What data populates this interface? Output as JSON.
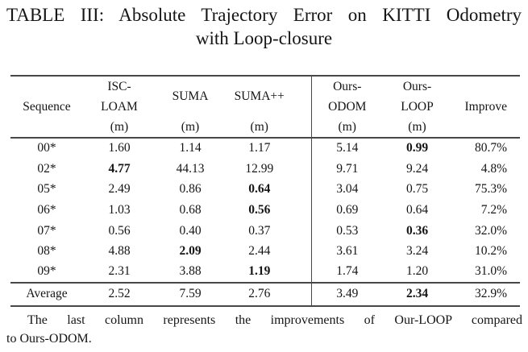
{
  "title": {
    "line1": "TABLE III: Absolute Trajectory Error on KITTI Odometry",
    "line2": "with Loop-closure"
  },
  "table": {
    "columns": [
      {
        "key": "sequence",
        "layout": "middle",
        "label": "Sequence",
        "unit": ""
      },
      {
        "key": "isc-loam",
        "layout": "two-line",
        "line1": "ISC-",
        "line2": "LOAM",
        "unit": "(m)"
      },
      {
        "key": "suma",
        "layout": "spanning",
        "label": "SUMA",
        "unit": "(m)"
      },
      {
        "key": "suma-pp",
        "layout": "spanning",
        "label": "SUMA++",
        "unit": "(m)"
      },
      {
        "key": "ours-odom",
        "layout": "two-line",
        "line1": "Ours-",
        "line2": "ODOM",
        "unit": "(m)"
      },
      {
        "key": "ours-loop",
        "layout": "two-line",
        "line1": "Ours-",
        "line2": "LOOP",
        "unit": "(m)"
      },
      {
        "key": "improve",
        "layout": "middle",
        "label": "Improve",
        "unit": ""
      }
    ],
    "rows": [
      {
        "sequence": "00*",
        "values": [
          "1.60",
          "1.14",
          "1.17",
          "5.14",
          "0.99",
          "80.7%"
        ],
        "bold_index": 4
      },
      {
        "sequence": "02*",
        "values": [
          "4.77",
          "44.13",
          "12.99",
          "9.71",
          "9.24",
          "4.8%"
        ],
        "bold_index": 0
      },
      {
        "sequence": "05*",
        "values": [
          "2.49",
          "0.86",
          "0.64",
          "3.04",
          "0.75",
          "75.3%"
        ],
        "bold_index": 2
      },
      {
        "sequence": "06*",
        "values": [
          "1.03",
          "0.68",
          "0.56",
          "0.69",
          "0.64",
          "7.2%"
        ],
        "bold_index": 2
      },
      {
        "sequence": "07*",
        "values": [
          "0.56",
          "0.40",
          "0.37",
          "0.53",
          "0.36",
          "32.0%"
        ],
        "bold_index": 4
      },
      {
        "sequence": "08*",
        "values": [
          "4.88",
          "2.09",
          "2.44",
          "3.61",
          "3.24",
          "10.2%"
        ],
        "bold_index": 1
      },
      {
        "sequence": "09*",
        "values": [
          "2.31",
          "3.88",
          "1.19",
          "1.74",
          "1.20",
          "31.0%"
        ],
        "bold_index": 2
      }
    ],
    "average": {
      "sequence": "Average",
      "values": [
        "2.52",
        "7.59",
        "2.76",
        "3.49",
        "2.34",
        "32.9%"
      ],
      "bold_index": 4
    }
  },
  "footnote": {
    "line1": "The last column represents the improvements of Our-LOOP compared",
    "line2": "to Ours-ODOM.",
    "full_text": "The last column represents the improvements of Our-LOOP compared to Ours-ODOM."
  },
  "colors": {
    "rule": "#474747",
    "text": "#151515",
    "background": "#ffffff"
  }
}
